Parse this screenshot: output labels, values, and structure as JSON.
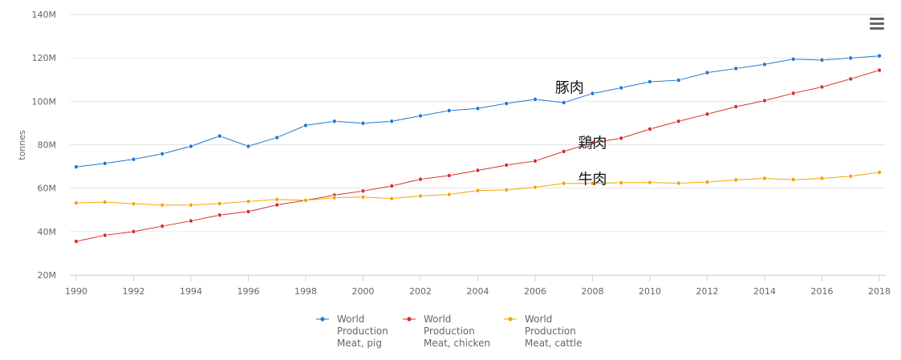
{
  "chart_data": {
    "type": "line",
    "title": "",
    "xlabel": "",
    "ylabel": "tonnes",
    "x": [
      1990,
      1991,
      1992,
      1993,
      1994,
      1995,
      1996,
      1997,
      1998,
      1999,
      2000,
      2001,
      2002,
      2003,
      2004,
      2005,
      2006,
      2007,
      2008,
      2009,
      2010,
      2011,
      2012,
      2013,
      2014,
      2015,
      2016,
      2017,
      2018
    ],
    "xticks": [
      "1990",
      "1992",
      "1994",
      "1996",
      "1998",
      "2000",
      "2002",
      "2004",
      "2006",
      "2008",
      "2010",
      "2012",
      "2014",
      "2016",
      "2018"
    ],
    "yticks": [
      "20M",
      "40M",
      "60M",
      "80M",
      "100M",
      "120M",
      "140M"
    ],
    "ylim": [
      20,
      140
    ],
    "yunit": "M",
    "grid": true,
    "legend_position": "bottom",
    "series": [
      {
        "name": "World Production Meat, pig",
        "legend_lines": [
          "World",
          "Production",
          "Meat, pig"
        ],
        "color": "#1f77cf",
        "values": [
          69.8,
          71.4,
          73.3,
          75.8,
          79.3,
          84.0,
          79.3,
          83.3,
          88.9,
          90.8,
          89.9,
          90.8,
          93.3,
          95.7,
          96.7,
          99.0,
          100.9,
          99.4,
          103.6,
          106.2,
          109.0,
          109.7,
          113.2,
          115.1,
          117.0,
          119.4,
          119.0,
          119.9,
          120.9
        ],
        "annotation": "豚肉",
        "annotation_x": 2007.2,
        "annotation_y": 104.0
      },
      {
        "name": "World Production Meat, chicken",
        "legend_lines": [
          "World",
          "Production",
          "Meat, chicken"
        ],
        "color": "#d62f2f",
        "values": [
          35.5,
          38.3,
          40.0,
          42.5,
          44.9,
          47.6,
          49.2,
          52.3,
          54.4,
          56.8,
          58.7,
          61.0,
          64.1,
          65.8,
          68.2,
          70.6,
          72.5,
          76.9,
          80.9,
          83.0,
          87.2,
          90.8,
          94.1,
          97.5,
          100.3,
          103.7,
          106.6,
          110.3,
          114.3
        ],
        "annotation": "鶏肉",
        "annotation_x": 2008.0,
        "annotation_y": 78.5
      },
      {
        "name": "World Production Meat, cattle",
        "legend_lines": [
          "World",
          "Production",
          "Meat, cattle"
        ],
        "color": "#f5a300",
        "values": [
          53.2,
          53.6,
          52.8,
          52.2,
          52.2,
          52.9,
          53.9,
          54.8,
          54.4,
          55.6,
          55.9,
          55.2,
          56.4,
          57.1,
          58.9,
          59.2,
          60.4,
          62.2,
          62.2,
          62.5,
          62.6,
          62.3,
          62.8,
          63.8,
          64.5,
          63.9,
          64.5,
          65.5,
          67.3
        ],
        "annotation": "牛肉",
        "annotation_x": 2008.0,
        "annotation_y": 62.0
      }
    ]
  },
  "menu_icon": "hamburger-menu-icon"
}
